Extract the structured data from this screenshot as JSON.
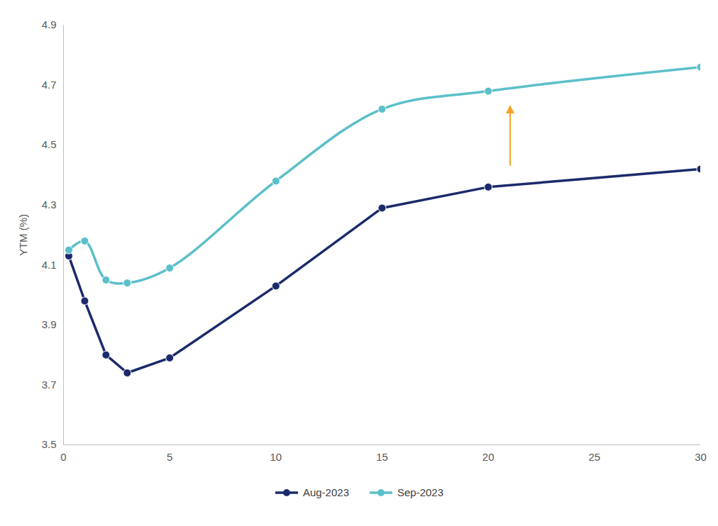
{
  "chart_data": {
    "type": "line",
    "y_label": "YTM (%)",
    "xlim": [
      0,
      30
    ],
    "xticks": [
      0,
      5,
      10,
      15,
      20,
      25,
      30
    ],
    "ylim": [
      3.5,
      4.9
    ],
    "yticks": [
      3.5,
      3.7,
      3.9,
      4.1,
      4.3,
      4.5,
      4.7,
      4.9
    ],
    "grid": false,
    "legend": "bottom",
    "x": [
      0.25,
      1,
      2,
      3,
      5,
      10,
      15,
      20,
      30
    ],
    "series": [
      {
        "name": "Aug-2023",
        "color": "#1b2a6b",
        "marker": "circle",
        "line_style": "solid",
        "values": [
          4.13,
          3.98,
          3.8,
          3.74,
          3.79,
          4.03,
          4.29,
          4.36,
          4.42
        ]
      },
      {
        "name": "Sep-2023",
        "color": "#5bbfc9",
        "marker": "circle",
        "line_style": "smooth",
        "values": [
          4.15,
          4.18,
          4.05,
          4.04,
          4.09,
          4.38,
          4.62,
          4.68,
          4.76
        ]
      }
    ]
  }
}
